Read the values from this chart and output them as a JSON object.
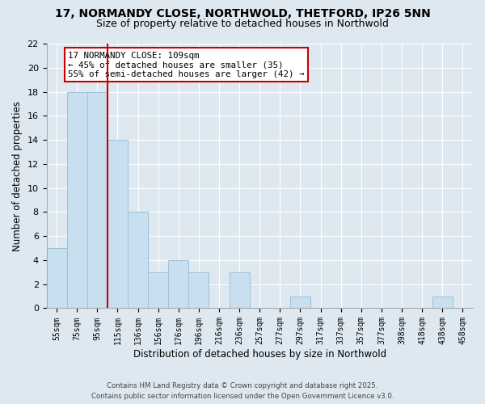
{
  "title": "17, NORMANDY CLOSE, NORTHWOLD, THETFORD, IP26 5NN",
  "subtitle": "Size of property relative to detached houses in Northwold",
  "xlabel": "Distribution of detached houses by size in Northwold",
  "ylabel": "Number of detached properties",
  "bin_labels": [
    "55sqm",
    "75sqm",
    "95sqm",
    "115sqm",
    "136sqm",
    "156sqm",
    "176sqm",
    "196sqm",
    "216sqm",
    "236sqm",
    "257sqm",
    "277sqm",
    "297sqm",
    "317sqm",
    "337sqm",
    "357sqm",
    "377sqm",
    "398sqm",
    "418sqm",
    "438sqm",
    "458sqm"
  ],
  "bar_values": [
    5,
    18,
    18,
    14,
    8,
    3,
    4,
    3,
    0,
    3,
    0,
    0,
    1,
    0,
    0,
    0,
    0,
    0,
    0,
    1,
    0
  ],
  "bar_color": "#c8dff0",
  "bar_edgecolor": "#a0bfd8",
  "vline_color": "#cc0000",
  "annotation_title": "17 NORMANDY CLOSE: 109sqm",
  "annotation_line2": "← 45% of detached houses are smaller (35)",
  "annotation_line3": "55% of semi-detached houses are larger (42) →",
  "annotation_box_color": "#ffffff",
  "annotation_box_edgecolor": "#cc0000",
  "ylim": [
    0,
    22
  ],
  "yticks": [
    0,
    2,
    4,
    6,
    8,
    10,
    12,
    14,
    16,
    18,
    20,
    22
  ],
  "bg_color": "#dde8f0",
  "fig_color": "#dde8f0",
  "footer_line1": "Contains HM Land Registry data © Crown copyright and database right 2025.",
  "footer_line2": "Contains public sector information licensed under the Open Government Licence v3.0.",
  "title_fontsize": 10,
  "subtitle_fontsize": 9
}
